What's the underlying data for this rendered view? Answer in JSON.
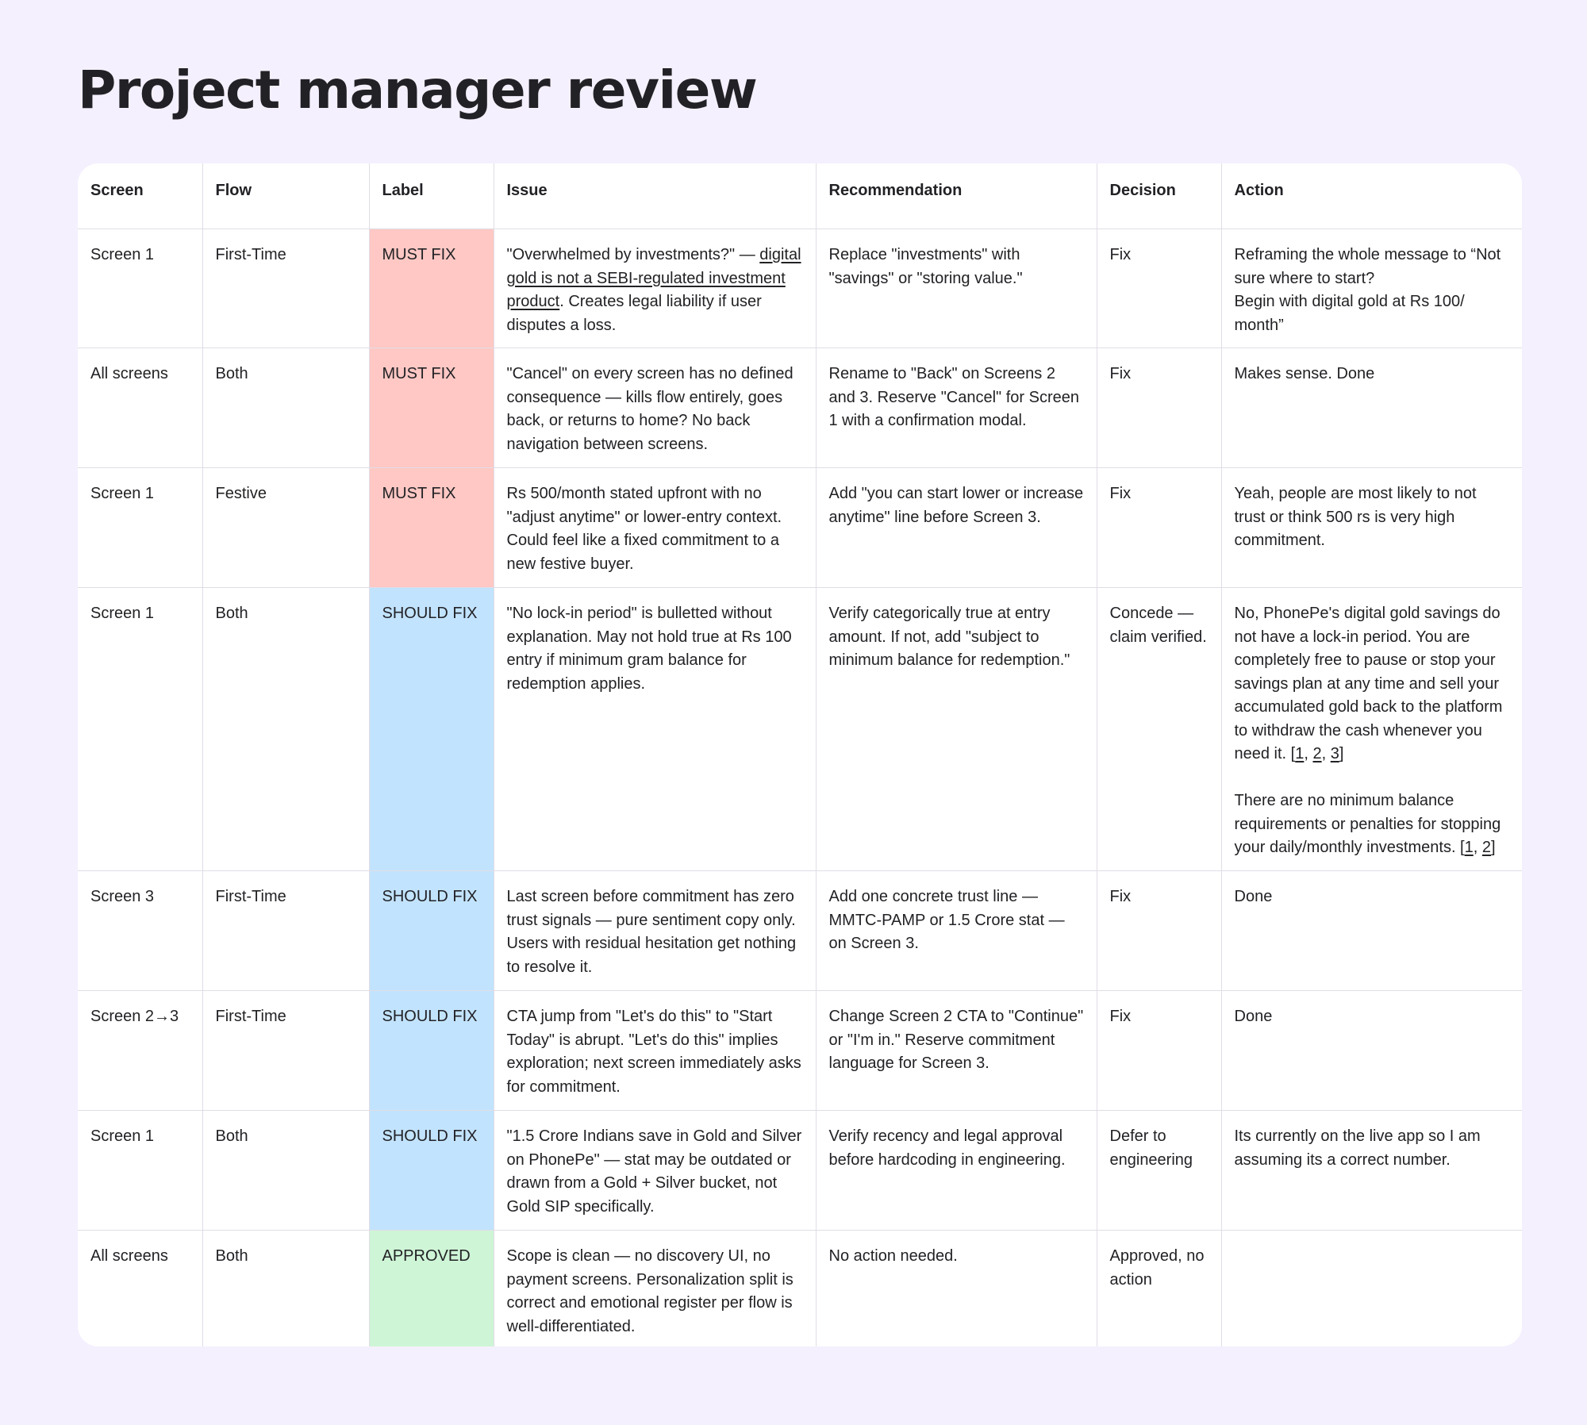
{
  "page": {
    "title": "Project manager review",
    "colors": {
      "background": "#f5f0fe",
      "must_fix": "#ffc8c4",
      "should_fix": "#c2e3fd",
      "approved": "#cef5d6"
    }
  },
  "table": {
    "headers": {
      "screen": "Screen",
      "flow": "Flow",
      "label": "Label",
      "issue": "Issue",
      "recommendation": "Recommendation",
      "decision": "Decision",
      "action": "Action"
    },
    "rows": [
      {
        "screen": "Screen 1",
        "flow": "First-Time",
        "label": "MUST FIX",
        "issue_a": "\"Overwhelmed by investments?\" — ",
        "issue_u": "digital gold is not a SEBI-regulated investment product",
        "issue_b": ". Creates legal liability if user disputes a loss.",
        "recommendation": "Replace \"investments\" with \"savings\" or \"storing value.\"",
        "decision": "Fix",
        "action": "Reframing the whole message to “Not sure where to start?\nBegin with digital gold at Rs 100/ month”"
      },
      {
        "screen": "All screens",
        "flow": "Both",
        "label": "MUST FIX",
        "issue": "\"Cancel\" on every screen has no defined consequence — kills flow entirely, goes back, or returns to home? No back navigation between screens.",
        "recommendation": "Rename to \"Back\" on Screens 2 and 3. Reserve \"Cancel\" for Screen 1 with a confirmation modal.",
        "decision": "Fix",
        "action": "Makes sense. Done"
      },
      {
        "screen": "Screen 1",
        "flow": "Festive",
        "label": "MUST FIX",
        "issue": "Rs 500/month stated upfront with no \"adjust anytime\" or lower-entry context. Could feel like a fixed commitment to a new festive buyer.",
        "recommendation": "Add \"you can start lower or increase anytime\" line before Screen 3.",
        "decision": "Fix",
        "action": "Yeah, people are most likely to not trust or think 500 rs is very high commitment."
      },
      {
        "screen": "Screen 1",
        "flow": "Both",
        "label": "SHOULD FIX",
        "issue": "\"No lock-in period\" is bulletted without explanation. May not hold true at Rs 100 entry if minimum gram balance for redemption applies.",
        "recommendation": "Verify categorically true at entry amount. If not, add \"subject to minimum balance for redemption.\"",
        "decision": "Concede — claim verified.",
        "action_p1": "No, PhonePe's digital gold savings do not have a lock-in period. You are completely free to pause or stop your savings plan at any time and sell your accumulated gold back to the platform to withdraw the cash whenever you need it. [",
        "action_r1": "1",
        "action_r2": "2",
        "action_r3": "3",
        "action_p2": " There are no minimum balance requirements or penalties for stopping your daily/monthly investments. [",
        "action_r4": "1",
        "action_r5": "2"
      },
      {
        "screen": "Screen 3",
        "flow": "First-Time",
        "label": "SHOULD FIX",
        "issue": "Last screen before commitment has zero trust signals — pure sentiment copy only. Users with residual hesitation get nothing to resolve it.",
        "recommendation": "Add one concrete trust line — MMTC-PAMP or 1.5 Crore stat — on Screen 3.",
        "decision": "Fix",
        "action": "Done"
      },
      {
        "screen": "Screen 2→3",
        "flow": "First-Time",
        "label": "SHOULD FIX",
        "issue": "CTA jump from \"Let's do this\" to \"Start Today\" is abrupt. \"Let's do this\" implies exploration; next screen immediately asks for commitment.",
        "recommendation": "Change Screen 2 CTA to \"Continue\" or \"I'm in.\" Reserve commitment language for Screen 3.",
        "decision": "Fix",
        "action": "Done"
      },
      {
        "screen": "Screen 1",
        "flow": "Both",
        "label": "SHOULD FIX",
        "issue": "\"1.5 Crore Indians save in Gold and Silver on PhonePe\" — stat may be outdated or drawn from a Gold + Silver bucket, not Gold SIP specifically.",
        "recommendation": "Verify recency and legal approval before hardcoding in engineering.",
        "decision": "Defer to engineering",
        "action": "Its currently on the live app so I am assuming its a correct number."
      },
      {
        "screen": "All screens",
        "flow": "Both",
        "label": "APPROVED",
        "issue": "Scope is clean — no discovery UI, no payment screens. Personalization split is correct and emotional register per flow is well-differentiated.",
        "recommendation": "No action needed.",
        "decision": "Approved, no action",
        "action": ""
      }
    ]
  }
}
